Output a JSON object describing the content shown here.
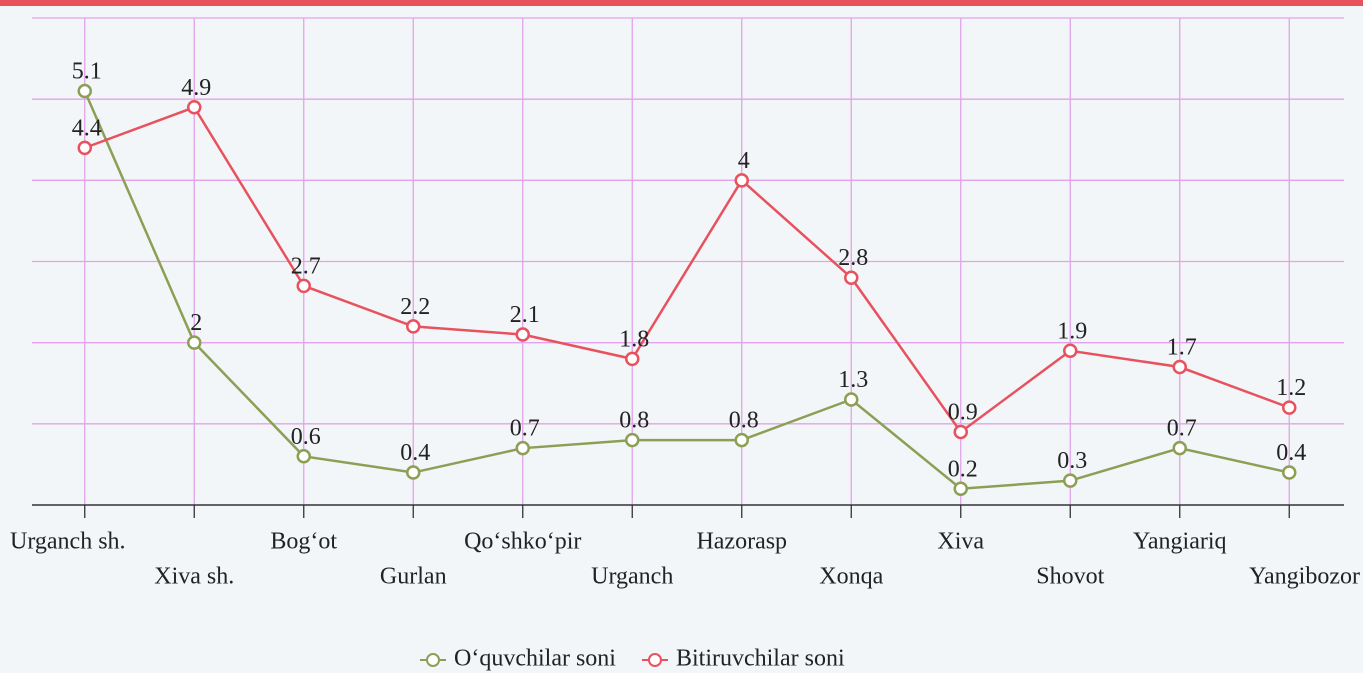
{
  "chart_data": {
    "type": "line",
    "categories": [
      "Urganch sh.",
      "Xiva sh.",
      "Bog‘ot",
      "Gurlan",
      "Qo‘shko‘pir",
      "Urganch",
      "Hazorasp",
      "Xonqa",
      "Xiva",
      "Shovot",
      "Yangiariq",
      "Yangibozor"
    ],
    "series": [
      {
        "name": "O‘quvchilar soni",
        "color": "#8c9f55",
        "values": [
          5.1,
          2,
          0.6,
          0.4,
          0.7,
          0.8,
          0.8,
          1.3,
          0.2,
          0.3,
          0.7,
          0.4
        ]
      },
      {
        "name": "Bitiruvchilar soni",
        "color": "#e8525f",
        "values": [
          4.4,
          4.9,
          2.7,
          2.2,
          2.1,
          1.8,
          4,
          2.8,
          0.9,
          1.9,
          1.7,
          1.2
        ]
      }
    ],
    "ylim": [
      0,
      6
    ],
    "yticks": [
      0,
      1,
      2,
      3,
      4,
      5,
      6
    ],
    "grid": true,
    "legend": "bottom"
  }
}
